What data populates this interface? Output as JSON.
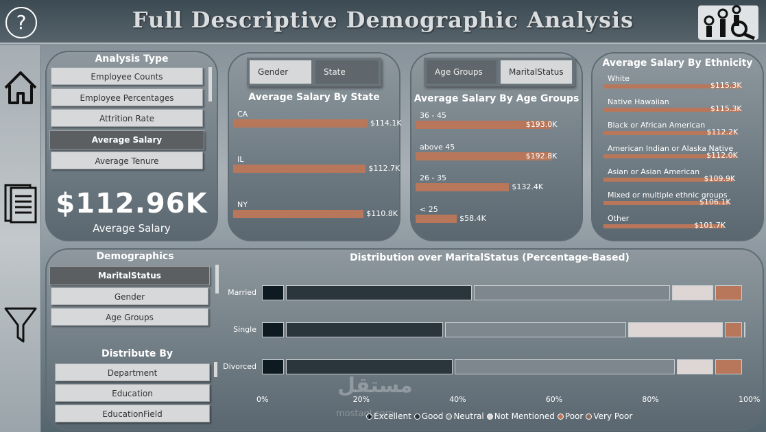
{
  "header": {
    "title": "Full Descriptive Demographic Analysis",
    "help_label": "?"
  },
  "sidebar": {
    "icons": [
      "home-icon",
      "report-icon",
      "filter-icon"
    ]
  },
  "analysis_type": {
    "title": "Analysis Type",
    "options": [
      "Employee Counts",
      "Employee Percentages",
      "Attrition Rate",
      "Average Salary",
      "Average Tenure"
    ],
    "selected": "Average Salary"
  },
  "kpi": {
    "value": "$112.96K",
    "label": "Average Salary"
  },
  "state_card": {
    "tabs": [
      "Gender",
      "State"
    ],
    "title": "Average Salary By State",
    "colors": {
      "bar": "#b8775a"
    }
  },
  "age_card": {
    "tabs": [
      "Age Groups",
      "MaritalStatus"
    ],
    "title": "Average Salary By Age Groups"
  },
  "ethnicity_card": {
    "title": "Average Salary By Ethnicity"
  },
  "demographics": {
    "title": "Demographics",
    "options": [
      "MaritalStatus",
      "Gender",
      "Age Groups"
    ],
    "selected": "MaritalStatus"
  },
  "distribute_by": {
    "title": "Distribute By",
    "options": [
      "Department",
      "Education",
      "EducationField"
    ]
  },
  "distribution": {
    "title": "Distribution over MaritalStatus (Percentage-Based)",
    "axis_ticks": [
      "0%",
      "20%",
      "40%",
      "60%",
      "80%",
      "100%"
    ],
    "legend": [
      "Excellent",
      "Good",
      "Neutral",
      "Not Mentioned",
      "Poor",
      "Very Poor"
    ],
    "legend_colors": [
      "#0e1a22",
      "#2b353c",
      "#7d878d",
      "#ddd6d4",
      "#b8775a",
      "#8a6a5a"
    ]
  },
  "watermark": {
    "text": "مستقل",
    "subtext": "mostaql.com"
  },
  "chart_data": [
    {
      "type": "bar",
      "title": "Average Salary By State",
      "categories": [
        "CA",
        "IL",
        "NY"
      ],
      "values": [
        114.1,
        112.7,
        110.8
      ],
      "labels": [
        "$114.1K",
        "$112.7K",
        "$110.8K"
      ],
      "xlim": [
        0,
        120
      ]
    },
    {
      "type": "bar",
      "title": "Average Salary By Age Groups",
      "categories": [
        "36 - 45",
        "above 45",
        "26 - 35",
        "< 25"
      ],
      "values": [
        193.0,
        192.8,
        132.4,
        58.4
      ],
      "labels": [
        "$193.0K",
        "$192.8K",
        "$132.4K",
        "$58.4K"
      ],
      "xlim": [
        0,
        200
      ]
    },
    {
      "type": "bar",
      "title": "Average Salary By Ethnicity",
      "categories": [
        "White",
        "Native Hawaiian",
        "Black or African American",
        "American Indian or Alaska Native",
        "Asian or Asian American",
        "Mixed or multiple ethnic groups",
        "Other"
      ],
      "values": [
        115.3,
        115.3,
        112.2,
        112.0,
        109.9,
        106.1,
        101.7
      ],
      "labels": [
        "$115.3K",
        "$115.3K",
        "$112.2K",
        "$112.0K",
        "$109.9K",
        "$106.1K",
        "$101.7K"
      ],
      "xlim": [
        0,
        120
      ]
    },
    {
      "type": "bar",
      "stacked": true,
      "title": "Distribution over MaritalStatus (Percentage-Based)",
      "categories": [
        "Married",
        "Single",
        "Divorced"
      ],
      "series": [
        {
          "name": "Excellent",
          "values": [
            5,
            5,
            5
          ]
        },
        {
          "name": "Good",
          "values": [
            39,
            33,
            35
          ]
        },
        {
          "name": "Neutral",
          "values": [
            41,
            38,
            46
          ]
        },
        {
          "name": "Not Mentioned",
          "values": [
            9,
            20,
            8
          ]
        },
        {
          "name": "Poor",
          "values": [
            6,
            4,
            6
          ]
        },
        {
          "name": "Very Poor",
          "values": [
            0,
            0.5,
            0
          ]
        }
      ],
      "xlim": [
        0,
        100
      ]
    }
  ]
}
